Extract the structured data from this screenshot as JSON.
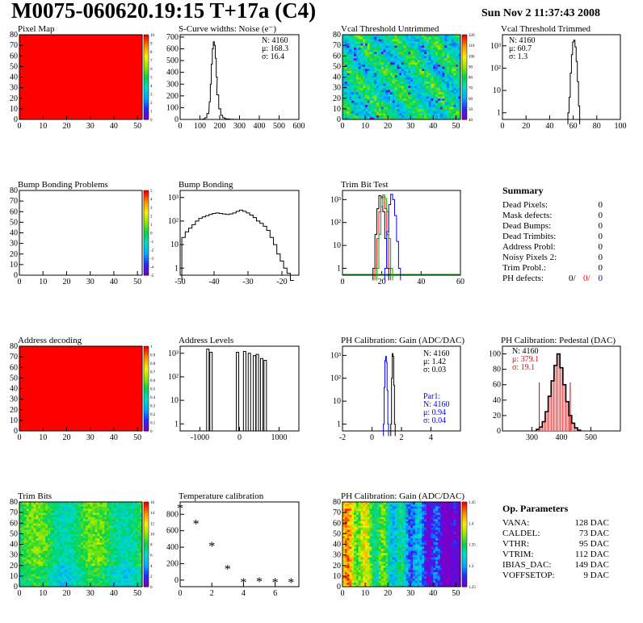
{
  "header": {
    "title": "M0075-060620.19:15 T+17a (C4)",
    "date": "Sun Nov  2 11:37:43 2008"
  },
  "panels": {
    "pixel_map": {
      "title": "Pixel Map",
      "x_ticks": [
        "0",
        "10",
        "20",
        "30",
        "40",
        "50"
      ],
      "y_ticks": [
        "0",
        "10",
        "20",
        "30",
        "40",
        "50",
        "60",
        "70",
        "80"
      ],
      "z_ticks": [
        "0",
        "1",
        "2",
        "3",
        "4",
        "5",
        "6",
        "7",
        "8",
        "9",
        "10"
      ],
      "fill_color": "#ff0000"
    },
    "scurve": {
      "title": "S-Curve widths: Noise (e⁻)",
      "stats": [
        "N: 4160",
        "μ: 168.3",
        "σ: 16.4"
      ],
      "x_ticks": [
        "0",
        "100",
        "200",
        "300",
        "400",
        "500",
        "600"
      ],
      "y_ticks": [
        "0",
        "100",
        "200",
        "300",
        "400",
        "500",
        "600",
        "700"
      ]
    },
    "vcal_untrimmed": {
      "title": "Vcal Threshold Untrimmed",
      "x_ticks": [
        "0",
        "10",
        "20",
        "30",
        "40",
        "50"
      ],
      "y_ticks": [
        "0",
        "10",
        "20",
        "30",
        "40",
        "50",
        "60",
        "70",
        "80"
      ],
      "z_ticks": [
        "40",
        "50",
        "60",
        "70",
        "80",
        "90",
        "100",
        "110",
        "120"
      ]
    },
    "vcal_trimmed": {
      "title": "Vcal Threshold Trimmed",
      "stats": [
        "N: 4160",
        "μ: 60.7",
        "σ:  1.3"
      ],
      "x_ticks": [
        "0",
        "20",
        "40",
        "60",
        "80",
        "100"
      ],
      "y_ticks": [
        "1",
        "10",
        "10²",
        "10³"
      ]
    },
    "bump_problems": {
      "title": "Bump Bonding Problems",
      "x_ticks": [
        "0",
        "10",
        "20",
        "30",
        "40",
        "50"
      ],
      "y_ticks": [
        "0",
        "10",
        "20",
        "30",
        "40",
        "50",
        "60",
        "70",
        "80"
      ],
      "z_ticks": [
        "-5",
        "-4",
        "-3",
        "-2",
        "-1",
        "0",
        "1",
        "2",
        "3",
        "4",
        "5"
      ]
    },
    "bump_bonding": {
      "title": "Bump Bonding",
      "x_ticks": [
        "-50",
        "-40",
        "-30",
        "-20"
      ],
      "y_ticks": [
        "1",
        "10",
        "10²",
        "10³"
      ]
    },
    "trim_bit_test": {
      "title": "Trim Bit Test",
      "x_ticks": [
        "0",
        "20",
        "40",
        "60"
      ],
      "y_ticks": [
        "1",
        "10",
        "10²",
        "10³"
      ]
    },
    "address_decoding": {
      "title": "Address decoding",
      "x_ticks": [
        "0",
        "10",
        "20",
        "30",
        "40",
        "50"
      ],
      "y_ticks": [
        "0",
        "10",
        "20",
        "30",
        "40",
        "50",
        "60",
        "70",
        "80"
      ],
      "z_ticks": [
        "0",
        "0.1",
        "0.2",
        "0.3",
        "0.4",
        "0.5",
        "0.6",
        "0.7",
        "0.8",
        "0.9",
        "1"
      ]
    },
    "address_levels": {
      "title": "Address Levels",
      "x_ticks": [
        "-1000",
        "0",
        "1000"
      ],
      "y_ticks": [
        "1",
        "10",
        "10²",
        "10³"
      ]
    },
    "ph_gain": {
      "title": "PH Calibration: Gain (ADC/DAC)",
      "stats": [
        "N: 4160",
        "μ: 1.42",
        "σ: 0.03"
      ],
      "par_stats": [
        "Par1:",
        "N: 4160",
        "μ: 0.94",
        "σ: 0.04"
      ],
      "x_ticks": [
        "-2",
        "0",
        "2",
        "4"
      ],
      "y_ticks": [
        "1",
        "10",
        "10²",
        "10³"
      ]
    },
    "ph_pedestal": {
      "title": "PH Calibration: Pedestal (DAC)",
      "stats": [
        "N: 4160"
      ],
      "fit_stats": [
        "μ: 379.1",
        "σ: 19.1"
      ],
      "x_ticks": [
        "300",
        "400",
        "500"
      ],
      "y_ticks": [
        "0",
        "20",
        "40",
        "60",
        "80",
        "100"
      ]
    },
    "trim_bits": {
      "title": "Trim Bits",
      "x_ticks": [
        "0",
        "10",
        "20",
        "30",
        "40",
        "50"
      ],
      "y_ticks": [
        "0",
        "10",
        "20",
        "30",
        "40",
        "50",
        "60",
        "70",
        "80"
      ],
      "z_ticks": [
        "0",
        "2",
        "4",
        "6",
        "8",
        "10",
        "12",
        "14",
        "16"
      ]
    },
    "temperature": {
      "title": "Temperature calibration",
      "x_ticks": [
        "0",
        "2",
        "4",
        "6"
      ],
      "y_ticks": [
        "0",
        "200",
        "400",
        "600",
        "800"
      ]
    },
    "ph_gain_map": {
      "title": "PH Calibration: Gain (ADC/DAC)",
      "x_ticks": [
        "0",
        "10",
        "20",
        "30",
        "40",
        "50"
      ],
      "y_ticks": [
        "0",
        "10",
        "20",
        "30",
        "40",
        "50",
        "60",
        "70",
        "80"
      ],
      "z_ticks": [
        "1.25",
        "1.3",
        "1.35",
        "1.4",
        "1.45"
      ]
    }
  },
  "summary": {
    "title": "Summary",
    "rows": [
      {
        "label": "Dead Pixels:",
        "value": "0"
      },
      {
        "label": "Mask defects:",
        "value": "0"
      },
      {
        "label": "Dead Bumps:",
        "value": "0"
      },
      {
        "label": "Dead Trimbits:",
        "value": "0"
      },
      {
        "label": "Address Probl:",
        "value": "0"
      },
      {
        "label": "Noisy Pixels 2:",
        "value": "0"
      },
      {
        "label": "Trim Probl.:",
        "value": "0"
      }
    ],
    "ph_defects": {
      "label": "PH defects:",
      "v1": "0/",
      "v2": "0/",
      "v3": "0"
    }
  },
  "op_params": {
    "title": "Op. Parameters",
    "rows": [
      {
        "label": "VANA:",
        "value": "128 DAC"
      },
      {
        "label": "CALDEL:",
        "value": "73 DAC"
      },
      {
        "label": "VTHR:",
        "value": "95 DAC"
      },
      {
        "label": "VTRIM:",
        "value": "112 DAC"
      },
      {
        "label": "IBIAS_DAC:",
        "value": "149 DAC"
      },
      {
        "label": "VOFFSETOP:",
        "value": "9 DAC"
      }
    ]
  },
  "chart_data": [
    {
      "id": "pixel_map",
      "type": "heatmap",
      "title": "Pixel Map",
      "xlim": [
        0,
        52
      ],
      "ylim": [
        0,
        80
      ],
      "zlim": [
        0,
        10
      ],
      "value": "uniform red (all pixels at top of scale)"
    },
    {
      "id": "scurve",
      "type": "line",
      "title": "S-Curve widths: Noise (e⁻)",
      "xlim": [
        0,
        600
      ],
      "ylim": [
        0,
        700
      ],
      "x": [
        100,
        110,
        120,
        130,
        140,
        150,
        155,
        160,
        165,
        170,
        175,
        180,
        185,
        190,
        200,
        210,
        220,
        230,
        240,
        260,
        280,
        300
      ],
      "y": [
        0,
        1,
        4,
        15,
        50,
        150,
        300,
        470,
        600,
        660,
        630,
        520,
        360,
        210,
        90,
        35,
        15,
        8,
        4,
        2,
        1,
        0
      ]
    },
    {
      "id": "vcal_untrimmed",
      "type": "heatmap",
      "title": "Vcal Threshold Untrimmed",
      "xlim": [
        0,
        52
      ],
      "ylim": [
        0,
        80
      ],
      "zlim": [
        40,
        120
      ]
    },
    {
      "id": "vcal_trimmed",
      "type": "line",
      "title": "Vcal Threshold Trimmed",
      "xlim": [
        0,
        100
      ],
      "yscale": "log",
      "x": [
        56,
        57,
        58,
        59,
        60,
        61,
        62,
        63,
        64,
        65
      ],
      "y": [
        1,
        5,
        60,
        400,
        1500,
        1800,
        900,
        200,
        25,
        2
      ]
    },
    {
      "id": "bump_problems",
      "type": "heatmap",
      "title": "Bump Bonding Problems",
      "xlim": [
        0,
        52
      ],
      "ylim": [
        0,
        80
      ],
      "zlim": [
        -5,
        5
      ],
      "value": "empty"
    },
    {
      "id": "bump_bonding",
      "type": "line",
      "title": "Bump Bonding",
      "xlim": [
        -50,
        -15
      ],
      "yscale": "log",
      "x": [
        -49,
        -48,
        -47,
        -46,
        -45,
        -44,
        -43,
        -42,
        -41,
        -40,
        -39,
        -38,
        -37,
        -36,
        -35,
        -34,
        -33,
        -32,
        -31,
        -30,
        -29,
        -28,
        -27,
        -26,
        -25,
        -24,
        -23,
        -22,
        -21,
        -20,
        -19,
        -18,
        -17
      ],
      "y": [
        20,
        35,
        50,
        70,
        100,
        130,
        150,
        170,
        190,
        210,
        220,
        210,
        200,
        190,
        200,
        220,
        260,
        290,
        260,
        220,
        180,
        140,
        100,
        80,
        60,
        40,
        20,
        10,
        4,
        2,
        1,
        0.6,
        0.3
      ]
    },
    {
      "id": "trim_bit_test",
      "type": "line",
      "title": "Trim Bit Test",
      "xlim": [
        0,
        60
      ],
      "yscale": "log",
      "series": [
        {
          "color": "#000000",
          "x": [
            16,
            17,
            18,
            19,
            20,
            21,
            22,
            23
          ],
          "y": [
            1,
            30,
            400,
            1500,
            1200,
            300,
            20,
            1
          ]
        },
        {
          "color": "#ff0000",
          "x": [
            17,
            18,
            19,
            20,
            21,
            22,
            23,
            24
          ],
          "y": [
            1,
            20,
            300,
            1400,
            1300,
            400,
            30,
            1
          ]
        },
        {
          "color": "#00aa00",
          "x": [
            18,
            19,
            20,
            21,
            22,
            23,
            24,
            25
          ],
          "y": [
            1,
            30,
            500,
            1600,
            1100,
            300,
            20,
            1
          ]
        },
        {
          "color": "#0000ff",
          "x": [
            22,
            23,
            24,
            25,
            26,
            27,
            28,
            29
          ],
          "y": [
            1,
            40,
            600,
            1700,
            1000,
            200,
            15,
            1
          ]
        }
      ]
    },
    {
      "id": "address_decoding",
      "type": "heatmap",
      "title": "Address decoding",
      "xlim": [
        0,
        52
      ],
      "ylim": [
        0,
        80
      ],
      "zlim": [
        0,
        1
      ],
      "value": "uniform red (all pixels = 1)"
    },
    {
      "id": "address_levels",
      "type": "bar",
      "title": "Address Levels",
      "xlim": [
        -1500,
        1500
      ],
      "yscale": "log",
      "x": [
        -800,
        -720,
        -50,
        130,
        250,
        380,
        450,
        560,
        650
      ],
      "y": [
        1500,
        1100,
        1100,
        1200,
        1000,
        800,
        900,
        600,
        500
      ]
    },
    {
      "id": "ph_gain",
      "type": "line",
      "title": "PH Calibration: Gain (ADC/DAC)",
      "xlim": [
        -2,
        6
      ],
      "yscale": "log",
      "series": [
        {
          "color": "#000000",
          "x": [
            1.3,
            1.35,
            1.4,
            1.45,
            1.5,
            1.55
          ],
          "y": [
            1,
            100,
            1200,
            900,
            50,
            1
          ]
        },
        {
          "color": "#0000ff",
          "x": [
            0.8,
            0.85,
            0.9,
            0.95,
            1.0,
            1.05,
            1.1
          ],
          "y": [
            1,
            40,
            600,
            900,
            500,
            30,
            1
          ]
        }
      ]
    },
    {
      "id": "ph_pedestal",
      "type": "bar",
      "title": "PH Calibration: Pedestal (DAC)",
      "xlim": [
        200,
        600
      ],
      "ylim": [
        0,
        110
      ],
      "x": [
        320,
        330,
        340,
        350,
        360,
        370,
        380,
        390,
        400,
        410,
        420,
        430,
        440,
        450,
        460
      ],
      "y": [
        2,
        5,
        12,
        25,
        45,
        65,
        85,
        100,
        82,
        60,
        38,
        20,
        10,
        4,
        1
      ]
    },
    {
      "id": "trim_bits",
      "type": "heatmap",
      "title": "Trim Bits",
      "xlim": [
        0,
        52
      ],
      "ylim": [
        0,
        80
      ],
      "zlim": [
        0,
        16
      ]
    },
    {
      "id": "temperature",
      "type": "scatter",
      "title": "Temperature calibration",
      "xlim": [
        0,
        7.5
      ],
      "ylim": [
        -80,
        950
      ],
      "x": [
        0,
        1,
        2,
        3,
        4,
        5,
        6,
        7
      ],
      "y": [
        870,
        680,
        410,
        130,
        -30,
        -20,
        -30,
        -30
      ]
    },
    {
      "id": "ph_gain_map",
      "type": "heatmap",
      "title": "PH Calibration: Gain (ADC/DAC)",
      "xlim": [
        0,
        52
      ],
      "ylim": [
        0,
        80
      ],
      "zlim": [
        1.25,
        1.45
      ]
    }
  ]
}
